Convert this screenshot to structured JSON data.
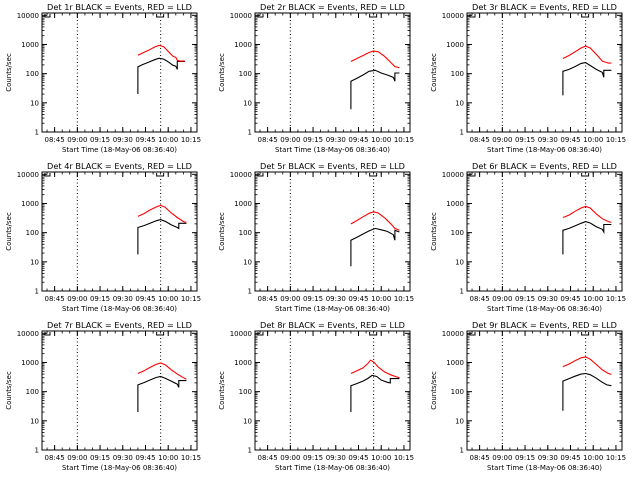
{
  "figure": {
    "background": "#ffffff",
    "colors": {
      "events": "#000000",
      "lld": "#ff0000",
      "axes": "#000000"
    }
  },
  "chart_data": [
    {
      "type": "line",
      "title": "Det 1r BLACK = Events, RED = LLD",
      "xlabel": "Start Time (18-May-06 08:36:40)",
      "ylabel": "Counts/sec",
      "x_ticks": [
        "08:45",
        "09:00",
        "09:15",
        "09:30",
        "09:45",
        "10:00",
        "10:15"
      ],
      "y_ticks": [
        "1",
        "10",
        "100",
        "1000",
        "10000"
      ],
      "xlim": [
        "08:36:40",
        "10:19:00"
      ],
      "ylim": [
        1,
        12000
      ],
      "yscale": "log",
      "vlines": [
        "09:00",
        "09:55"
      ],
      "series": [
        {
          "name": "Events",
          "color": "#000000",
          "x": [
            "09:40",
            "09:40",
            "09:43",
            "09:47",
            "09:51",
            "09:54",
            "09:57",
            "10:00",
            "10:03",
            "10:05",
            "10:06",
            "10:06",
            "10:11"
          ],
          "y": [
            20,
            170,
            205,
            245,
            300,
            340,
            315,
            255,
            195,
            180,
            140,
            260,
            260
          ]
        },
        {
          "name": "LLD",
          "color": "#ff0000",
          "x": [
            "09:40",
            "09:43",
            "09:47",
            "09:51",
            "09:54",
            "09:57",
            "10:00",
            "10:03",
            "10:05",
            "10:06",
            "10:08",
            "10:11"
          ],
          "y": [
            430,
            510,
            630,
            820,
            940,
            840,
            580,
            400,
            360,
            285,
            270,
            270
          ]
        }
      ]
    },
    {
      "type": "line",
      "title": "Det 2r BLACK = Events, RED = LLD",
      "xlabel": "Start Time (18-May-06 08:36:40)",
      "ylabel": "Counts/sec",
      "x_ticks": [
        "08:45",
        "09:00",
        "09:15",
        "09:30",
        "09:45",
        "10:00",
        "10:15"
      ],
      "y_ticks": [
        "1",
        "10",
        "100",
        "1000",
        "10000"
      ],
      "xlim": [
        "08:36:40",
        "10:19:00"
      ],
      "ylim": [
        1,
        12000
      ],
      "yscale": "log",
      "vlines": [
        "09:00",
        "09:55"
      ],
      "series": [
        {
          "name": "Events",
          "color": "#000000",
          "x": [
            "09:40",
            "09:40",
            "09:44",
            "09:48",
            "09:52",
            "09:56",
            "10:00",
            "10:04",
            "10:08",
            "10:09",
            "10:09",
            "10:12"
          ],
          "y": [
            6,
            55,
            70,
            90,
            120,
            130,
            105,
            90,
            75,
            55,
            105,
            105
          ]
        },
        {
          "name": "LLD",
          "color": "#ff0000",
          "x": [
            "09:40",
            "09:44",
            "09:48",
            "09:52",
            "09:55",
            "09:58",
            "10:02",
            "10:06",
            "10:09",
            "10:12"
          ],
          "y": [
            260,
            330,
            420,
            530,
            600,
            560,
            400,
            250,
            175,
            160
          ]
        }
      ]
    },
    {
      "type": "line",
      "title": "Det 3r BLACK = Events, RED = LLD",
      "xlabel": "Start Time (18-May-06 08:36:40)",
      "ylabel": "Counts/sec",
      "x_ticks": [
        "08:45",
        "09:00",
        "09:15",
        "09:30",
        "09:45",
        "10:00",
        "10:15"
      ],
      "y_ticks": [
        "1",
        "10",
        "100",
        "1000",
        "10000"
      ],
      "xlim": [
        "08:36:40",
        "10:19:00"
      ],
      "ylim": [
        1,
        12000
      ],
      "yscale": "log",
      "vlines": [
        "09:00",
        "09:55"
      ],
      "series": [
        {
          "name": "Events",
          "color": "#000000",
          "x": [
            "09:40",
            "09:40",
            "09:44",
            "09:48",
            "09:52",
            "09:55",
            "09:58",
            "10:02",
            "10:06",
            "10:07",
            "10:07",
            "10:12"
          ],
          "y": [
            18,
            120,
            140,
            175,
            225,
            240,
            190,
            140,
            110,
            75,
            130,
            130
          ]
        },
        {
          "name": "LLD",
          "color": "#ff0000",
          "x": [
            "09:40",
            "09:44",
            "09:48",
            "09:52",
            "09:55",
            "09:58",
            "10:02",
            "10:06",
            "10:10",
            "10:12"
          ],
          "y": [
            330,
            420,
            560,
            760,
            880,
            760,
            460,
            270,
            230,
            230
          ]
        }
      ]
    },
    {
      "type": "line",
      "title": "Det 4r BLACK = Events, RED = LLD",
      "xlabel": "Start Time (18-May-06 08:36:40)",
      "ylabel": "Counts/sec",
      "x_ticks": [
        "08:45",
        "09:00",
        "09:15",
        "09:30",
        "09:45",
        "10:00",
        "10:15"
      ],
      "y_ticks": [
        "1",
        "10",
        "100",
        "1000",
        "10000"
      ],
      "xlim": [
        "08:36:40",
        "10:19:00"
      ],
      "ylim": [
        1,
        12000
      ],
      "yscale": "log",
      "vlines": [
        "09:00",
        "09:55"
      ],
      "series": [
        {
          "name": "Events",
          "color": "#000000",
          "x": [
            "09:40",
            "09:40",
            "09:44",
            "09:48",
            "09:52",
            "09:55",
            "09:58",
            "10:02",
            "10:06",
            "10:07",
            "10:07",
            "10:12"
          ],
          "y": [
            18,
            150,
            175,
            210,
            255,
            280,
            245,
            185,
            150,
            140,
            210,
            210
          ]
        },
        {
          "name": "LLD",
          "color": "#ff0000",
          "x": [
            "09:40",
            "09:44",
            "09:48",
            "09:52",
            "09:55",
            "09:58",
            "10:02",
            "10:06",
            "10:10",
            "10:12"
          ],
          "y": [
            360,
            450,
            600,
            760,
            860,
            740,
            470,
            330,
            240,
            225
          ]
        }
      ]
    },
    {
      "type": "line",
      "title": "Det 5r BLACK = Events, RED = LLD",
      "xlabel": "Start Time (18-May-06 08:36:40)",
      "ylabel": "Counts/sec",
      "x_ticks": [
        "08:45",
        "09:00",
        "09:15",
        "09:30",
        "09:45",
        "10:00",
        "10:15"
      ],
      "y_ticks": [
        "1",
        "10",
        "100",
        "1000",
        "10000"
      ],
      "xlim": [
        "08:36:40",
        "10:19:00"
      ],
      "ylim": [
        1,
        12000
      ],
      "yscale": "log",
      "vlines": [
        "09:00",
        "09:55"
      ],
      "series": [
        {
          "name": "Events",
          "color": "#000000",
          "x": [
            "09:40",
            "09:40",
            "09:44",
            "09:48",
            "09:52",
            "09:56",
            "10:00",
            "10:04",
            "10:08",
            "10:09",
            "10:09",
            "10:12"
          ],
          "y": [
            7,
            55,
            70,
            90,
            115,
            140,
            125,
            110,
            85,
            55,
            120,
            105
          ]
        },
        {
          "name": "LLD",
          "color": "#ff0000",
          "x": [
            "09:40",
            "09:44",
            "09:48",
            "09:52",
            "09:55",
            "09:58",
            "10:02",
            "10:06",
            "10:09",
            "10:12"
          ],
          "y": [
            200,
            260,
            350,
            460,
            520,
            470,
            330,
            210,
            140,
            120
          ]
        }
      ]
    },
    {
      "type": "line",
      "title": "Det 6r BLACK = Events, RED = LLD",
      "xlabel": "Start Time (18-May-06 08:36:40)",
      "ylabel": "Counts/sec",
      "x_ticks": [
        "08:45",
        "09:00",
        "09:15",
        "09:30",
        "09:45",
        "10:00",
        "10:15"
      ],
      "y_ticks": [
        "1",
        "10",
        "100",
        "1000",
        "10000"
      ],
      "xlim": [
        "08:36:40",
        "10:19:00"
      ],
      "ylim": [
        1,
        12000
      ],
      "yscale": "log",
      "vlines": [
        "09:00",
        "09:55"
      ],
      "series": [
        {
          "name": "Events",
          "color": "#000000",
          "x": [
            "09:40",
            "09:40",
            "09:44",
            "09:48",
            "09:52",
            "09:55",
            "09:58",
            "10:02",
            "10:06",
            "10:07",
            "10:07",
            "10:12"
          ],
          "y": [
            18,
            120,
            140,
            170,
            210,
            240,
            215,
            160,
            130,
            105,
            190,
            190
          ]
        },
        {
          "name": "LLD",
          "color": "#ff0000",
          "x": [
            "09:40",
            "09:44",
            "09:48",
            "09:52",
            "09:55",
            "09:58",
            "10:02",
            "10:06",
            "10:10",
            "10:12"
          ],
          "y": [
            330,
            400,
            540,
            700,
            800,
            700,
            440,
            300,
            240,
            225
          ]
        }
      ]
    },
    {
      "type": "line",
      "title": "Det 7r BLACK = Events, RED = LLD",
      "xlabel": "Start Time (18-May-06 08:36:40)",
      "ylabel": "Counts/sec",
      "x_ticks": [
        "08:45",
        "09:00",
        "09:15",
        "09:30",
        "09:45",
        "10:00",
        "10:15"
      ],
      "y_ticks": [
        "1",
        "10",
        "100",
        "1000",
        "10000"
      ],
      "xlim": [
        "08:36:40",
        "10:19:00"
      ],
      "ylim": [
        1,
        12000
      ],
      "yscale": "log",
      "vlines": [
        "09:00",
        "09:55"
      ],
      "series": [
        {
          "name": "Events",
          "color": "#000000",
          "x": [
            "09:40",
            "09:40",
            "09:44",
            "09:48",
            "09:52",
            "09:55",
            "09:58",
            "10:02",
            "10:06",
            "10:07",
            "10:07",
            "10:12"
          ],
          "y": [
            20,
            170,
            205,
            250,
            305,
            330,
            290,
            230,
            180,
            140,
            240,
            240
          ]
        },
        {
          "name": "LLD",
          "color": "#ff0000",
          "x": [
            "09:40",
            "09:44",
            "09:48",
            "09:52",
            "09:55",
            "09:58",
            "10:02",
            "10:06",
            "10:10",
            "10:12"
          ],
          "y": [
            420,
            520,
            680,
            860,
            960,
            840,
            560,
            400,
            300,
            270
          ]
        }
      ]
    },
    {
      "type": "line",
      "title": "Det 8r BLACK = Events, RED = LLD",
      "xlabel": "Start Time (18-May-06 08:36:40)",
      "ylabel": "Counts/sec",
      "x_ticks": [
        "08:45",
        "09:00",
        "09:15",
        "09:30",
        "09:45",
        "10:00",
        "10:15"
      ],
      "y_ticks": [
        "1",
        "10",
        "100",
        "1000",
        "10000"
      ],
      "xlim": [
        "08:36:40",
        "10:19:00"
      ],
      "ylim": [
        1,
        12000
      ],
      "yscale": "log",
      "vlines": [
        "09:00",
        "09:55"
      ],
      "series": [
        {
          "name": "Events",
          "color": "#000000",
          "x": [
            "09:40",
            "09:40",
            "09:44",
            "09:48",
            "09:51",
            "09:54",
            "09:57",
            "10:00",
            "10:04",
            "10:06",
            "10:06",
            "10:12"
          ],
          "y": [
            20,
            160,
            190,
            230,
            280,
            360,
            330,
            250,
            210,
            200,
            280,
            280
          ]
        },
        {
          "name": "LLD",
          "color": "#ff0000",
          "x": [
            "09:40",
            "09:44",
            "09:48",
            "09:51",
            "09:53",
            "09:55",
            "09:58",
            "10:02",
            "10:06",
            "10:10",
            "10:12"
          ],
          "y": [
            420,
            520,
            650,
            900,
            1200,
            1050,
            700,
            480,
            380,
            320,
            300
          ]
        }
      ]
    },
    {
      "type": "line",
      "title": "Det 9r BLACK = Events, RED = LLD",
      "xlabel": "Start Time (18-May-06 08:36:40)",
      "ylabel": "Counts/sec",
      "x_ticks": [
        "08:45",
        "09:00",
        "09:15",
        "09:30",
        "09:45",
        "10:00",
        "10:15"
      ],
      "y_ticks": [
        "1",
        "10",
        "100",
        "1000",
        "10000"
      ],
      "xlim": [
        "08:36:40",
        "10:19:00"
      ],
      "ylim": [
        1,
        12000
      ],
      "yscale": "log",
      "vlines": [
        "09:00",
        "09:55"
      ],
      "series": [
        {
          "name": "Events",
          "color": "#000000",
          "x": [
            "09:40",
            "09:40",
            "09:44",
            "09:48",
            "09:52",
            "09:55",
            "09:58",
            "10:02",
            "10:06",
            "10:09",
            "10:12"
          ],
          "y": [
            22,
            230,
            280,
            340,
            400,
            420,
            380,
            290,
            210,
            170,
            160
          ]
        },
        {
          "name": "LLD",
          "color": "#ff0000",
          "x": [
            "09:40",
            "09:44",
            "09:48",
            "09:52",
            "09:55",
            "09:58",
            "10:02",
            "10:06",
            "10:10",
            "10:12"
          ],
          "y": [
            720,
            880,
            1150,
            1450,
            1550,
            1300,
            850,
            560,
            420,
            390
          ]
        }
      ]
    }
  ]
}
